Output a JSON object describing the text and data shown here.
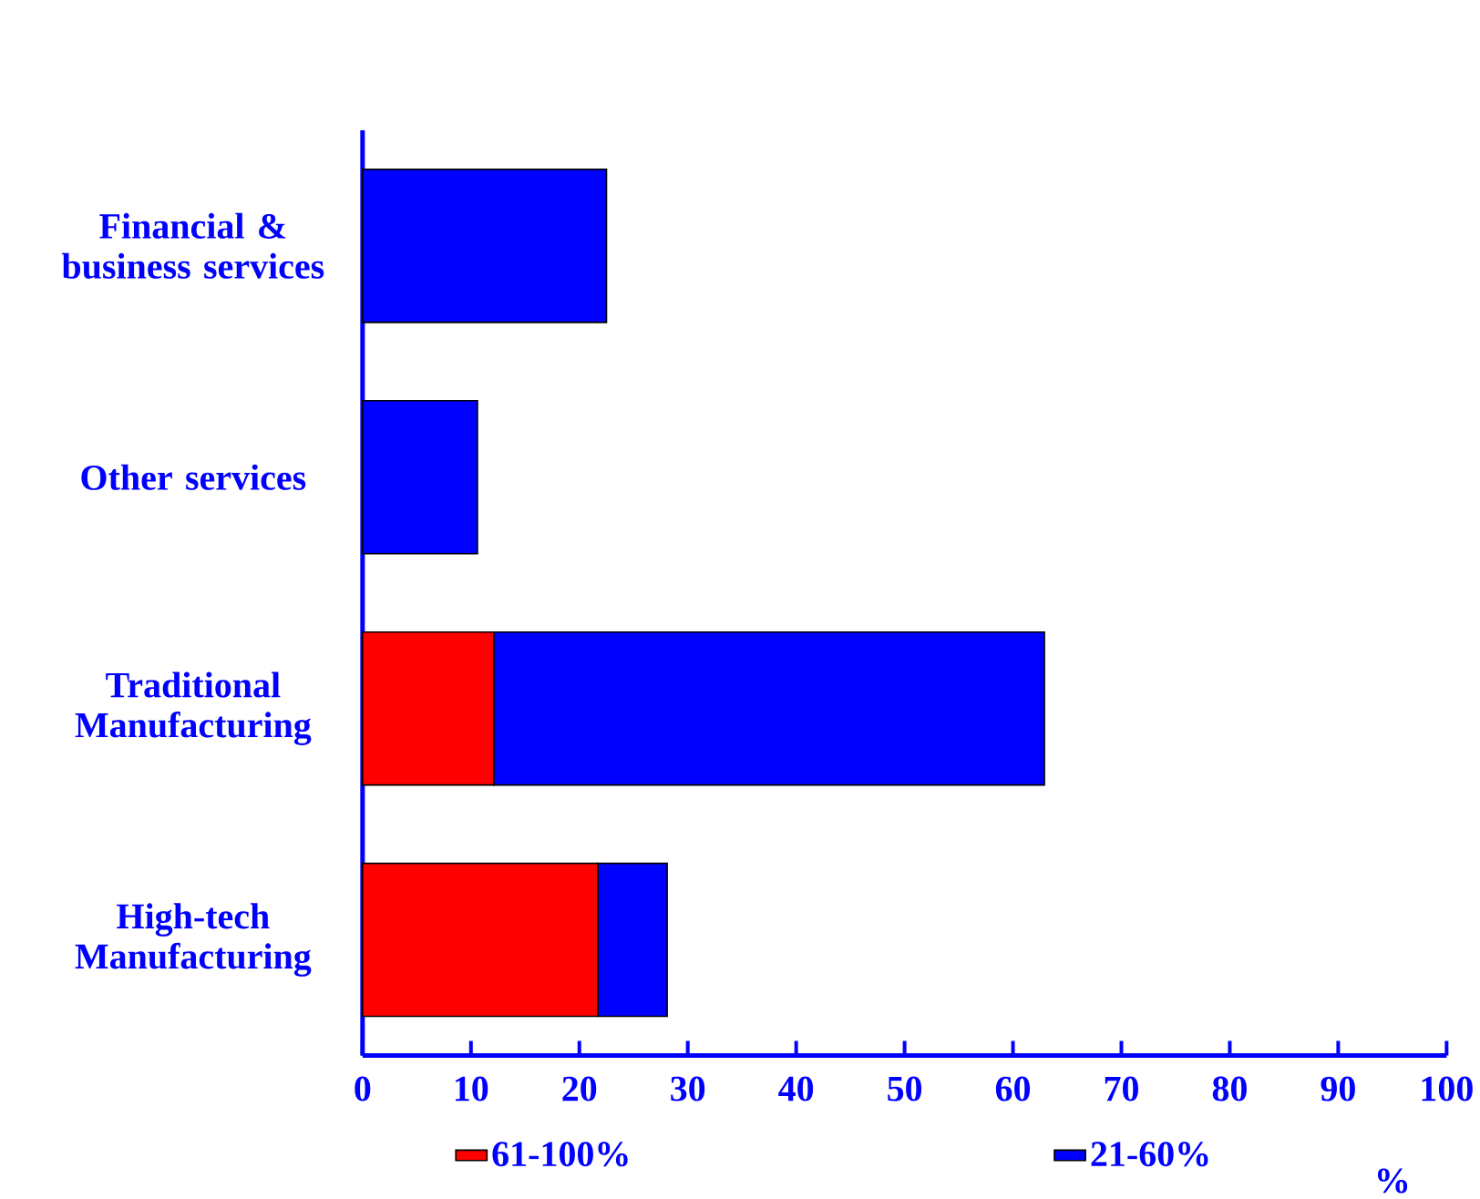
{
  "chart_data": {
    "type": "bar",
    "orientation": "horizontal",
    "stacked": true,
    "categories": [
      "Financial & business services",
      "Other services",
      "Traditional Manufacturing",
      "High-tech Manufacturing"
    ],
    "series": [
      {
        "name": "61-100%",
        "color": "#ff0000",
        "values": [
          0,
          0,
          12.1,
          21.7
        ]
      },
      {
        "name": "21-60%",
        "color": "#0000ff",
        "values": [
          22.5,
          10.6,
          50.8,
          6.4
        ]
      }
    ],
    "xlim": [
      0,
      100
    ],
    "xticks": [
      0,
      10,
      20,
      30,
      40,
      50,
      60,
      70,
      80,
      90,
      100
    ],
    "xlabel": "%",
    "legend": "bottom"
  }
}
